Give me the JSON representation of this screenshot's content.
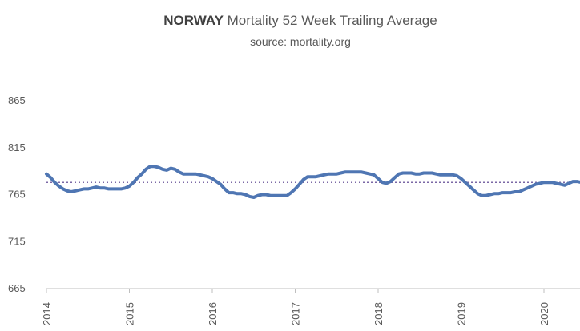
{
  "chart_data": {
    "type": "line",
    "title_country": "NORWAY",
    "title_rest": " Mortality 52 Week Trailing Average",
    "subtitle": "source: mortality.org",
    "xlabel": "",
    "ylabel": "",
    "ylim": [
      665,
      865
    ],
    "y_ticks": [
      "665",
      "715",
      "765",
      "815",
      "865"
    ],
    "x_ticks": [
      "2014",
      "2015",
      "2016",
      "2017",
      "2018",
      "2019",
      "2020"
    ],
    "xlim": [
      2014.0,
      2020.62
    ],
    "grid": false,
    "legend": "none",
    "series": [
      {
        "color": "#4f76b3",
        "x": [
          2014.0,
          2014.05,
          2014.1,
          2014.15,
          2014.2,
          2014.25,
          2014.3,
          2014.35,
          2014.4,
          2014.45,
          2014.5,
          2014.55,
          2014.6,
          2014.65,
          2014.7,
          2014.75,
          2014.8,
          2014.85,
          2014.9,
          2014.95,
          2015.0,
          2015.05,
          2015.1,
          2015.15,
          2015.2,
          2015.25,
          2015.3,
          2015.35,
          2015.4,
          2015.45,
          2015.5,
          2015.55,
          2015.6,
          2015.65,
          2015.7,
          2015.75,
          2015.8,
          2015.85,
          2015.9,
          2015.95,
          2016.0,
          2016.05,
          2016.1,
          2016.15,
          2016.2,
          2016.25,
          2016.3,
          2016.35,
          2016.4,
          2016.45,
          2016.5,
          2016.55,
          2016.6,
          2016.65,
          2016.7,
          2016.75,
          2016.8,
          2016.85,
          2016.9,
          2016.95,
          2017.0,
          2017.05,
          2017.1,
          2017.15,
          2017.2,
          2017.25,
          2017.3,
          2017.35,
          2017.4,
          2017.45,
          2017.5,
          2017.55,
          2017.6,
          2017.65,
          2017.7,
          2017.75,
          2017.8,
          2017.85,
          2017.9,
          2017.95,
          2018.0,
          2018.05,
          2018.1,
          2018.15,
          2018.2,
          2018.25,
          2018.3,
          2018.35,
          2018.4,
          2018.45,
          2018.5,
          2018.55,
          2018.6,
          2018.65,
          2018.7,
          2018.75,
          2018.8,
          2018.85,
          2018.9,
          2018.95,
          2019.0,
          2019.05,
          2019.1,
          2019.15,
          2019.2,
          2019.25,
          2019.3,
          2019.35,
          2019.4,
          2019.45,
          2019.5,
          2019.55,
          2019.6,
          2019.65,
          2019.7,
          2019.75,
          2019.8,
          2019.85,
          2019.9,
          2019.95,
          2020.0,
          2020.05,
          2020.1,
          2020.15,
          2020.2,
          2020.25,
          2020.3,
          2020.35,
          2020.4,
          2020.45,
          2020.5,
          2020.55,
          2020.6
        ],
        "values": [
          787,
          783,
          778,
          774,
          771,
          769,
          768,
          769,
          770,
          771,
          771,
          772,
          773,
          772,
          772,
          771,
          771,
          771,
          771,
          772,
          774,
          778,
          783,
          787,
          792,
          795,
          795,
          794,
          792,
          791,
          793,
          792,
          789,
          787,
          787,
          787,
          787,
          786,
          785,
          784,
          782,
          779,
          776,
          771,
          767,
          767,
          766,
          766,
          765,
          763,
          762,
          764,
          765,
          765,
          764,
          764,
          764,
          764,
          764,
          767,
          771,
          776,
          781,
          784,
          784,
          784,
          785,
          786,
          787,
          787,
          787,
          788,
          789,
          789,
          789,
          789,
          789,
          788,
          787,
          786,
          782,
          778,
          777,
          779,
          783,
          787,
          788,
          788,
          788,
          787,
          787,
          788,
          788,
          788,
          787,
          786,
          786,
          786,
          786,
          785,
          782,
          778,
          774,
          770,
          766,
          764,
          764,
          765,
          766,
          766,
          767,
          767,
          767,
          768,
          768,
          770,
          772,
          774,
          776,
          777,
          778,
          778,
          778,
          777,
          776,
          775,
          777,
          779,
          779,
          778,
          776,
          775,
          773
        ]
      }
    ],
    "reference_line": {
      "value": 778,
      "color": "#7b68a6"
    }
  }
}
